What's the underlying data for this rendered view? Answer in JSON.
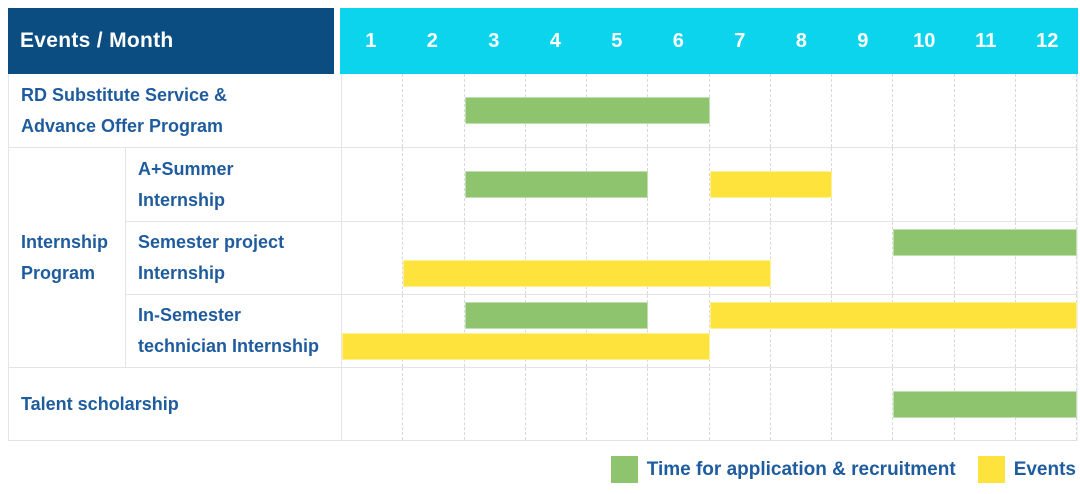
{
  "header": {
    "title": "Events / Month",
    "months": [
      "1",
      "2",
      "3",
      "4",
      "5",
      "6",
      "7",
      "8",
      "9",
      "10",
      "11",
      "12"
    ]
  },
  "rows": {
    "rd": {
      "line1": "RD Substitute Service &",
      "line2": "Advance Offer Program"
    },
    "group": {
      "line1": "Internship",
      "line2": "Program"
    },
    "summer": {
      "line1": "A+Summer",
      "line2": "Internship"
    },
    "semester": {
      "line1": "Semester project",
      "line2": "Internship"
    },
    "technician": {
      "line1": "In-Semester",
      "line2": "technician Internship"
    },
    "talent": {
      "line1": "Talent scholarship"
    }
  },
  "legend": {
    "application": "Time for application & recruitment",
    "events": "Events"
  },
  "colors": {
    "header_navy": "#0b4c81",
    "header_cyan": "#0bd4ec",
    "label_blue": "#1f5c9e",
    "bar_green": "#8dc46d",
    "bar_yellow": "#ffe33d"
  },
  "chart_data": {
    "type": "gantt",
    "title": "Events / Month",
    "x_axis": {
      "label": "Month",
      "ticks": [
        1,
        2,
        3,
        4,
        5,
        6,
        7,
        8,
        9,
        10,
        11,
        12
      ]
    },
    "legend_entries": [
      {
        "color_key": "green",
        "label": "Time for application & recruitment"
      },
      {
        "color_key": "yellow",
        "label": "Events"
      }
    ],
    "colors": {
      "green": "#8dc46d",
      "yellow": "#ffe33d"
    },
    "rows": [
      {
        "id": "rd",
        "label": "RD Substitute Service & Advance Offer Program",
        "group": null,
        "lines": [
          [
            {
              "color": "green",
              "start": 3,
              "end": 6
            }
          ]
        ]
      },
      {
        "id": "summer",
        "label": "A+Summer Internship",
        "group": "Internship Program",
        "lines": [
          [
            {
              "color": "green",
              "start": 3,
              "end": 5
            },
            {
              "color": "yellow",
              "start": 7,
              "end": 8
            }
          ]
        ]
      },
      {
        "id": "semester",
        "label": "Semester project Internship",
        "group": "Internship Program",
        "lines": [
          [
            {
              "color": "green",
              "start": 10,
              "end": 12
            }
          ],
          [
            {
              "color": "yellow",
              "start": 2,
              "end": 7
            }
          ]
        ]
      },
      {
        "id": "technician",
        "label": "In-Semester technician Internship",
        "group": "Internship Program",
        "lines": [
          [
            {
              "color": "green",
              "start": 3,
              "end": 5
            },
            {
              "color": "yellow",
              "start": 7,
              "end": 12
            }
          ],
          [
            {
              "color": "yellow",
              "start": 1,
              "end": 6
            }
          ]
        ]
      },
      {
        "id": "talent",
        "label": "Talent scholarship",
        "group": null,
        "lines": [
          [
            {
              "color": "green",
              "start": 10,
              "end": 12
            }
          ]
        ]
      }
    ]
  }
}
